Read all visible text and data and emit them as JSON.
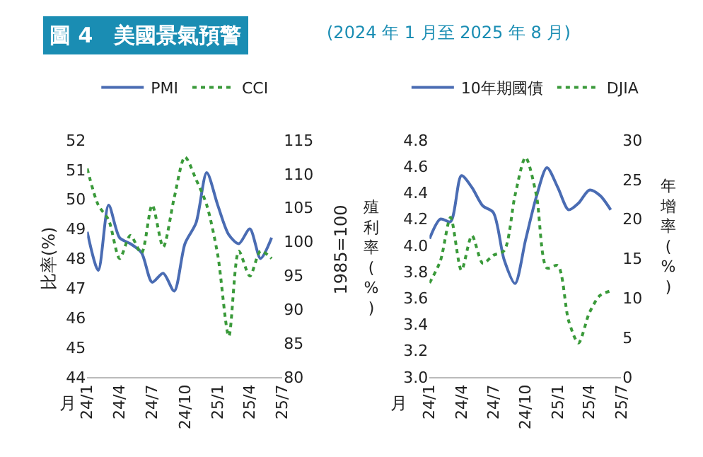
{
  "chart_data": [
    {
      "type": "line",
      "title": "圖 4　美國景氣預警",
      "xlabel": "月",
      "ylabel": "比率(%)",
      "y2label": "1985=100",
      "x": [
        "2024-01",
        "2024-02",
        "2024-03",
        "2024-04",
        "2024-05",
        "2024-06",
        "2024-07",
        "2024-08",
        "2024-09",
        "2024-10",
        "2024-11",
        "2024-12",
        "2025-01",
        "2025-02",
        "2025-03",
        "2025-04",
        "2025-05",
        "2025-06"
      ],
      "series": [
        {
          "name": "PMI",
          "color": "#4a6cb3",
          "line_style": "solid",
          "values": [
            48.9,
            47.6,
            49.8,
            48.7,
            48.5,
            48.2,
            47.2,
            47.5,
            46.9,
            48.5,
            49.2,
            50.9,
            49.8,
            48.8,
            48.5,
            49.0,
            48.0,
            48.7
          ]
        },
        {
          "name": "CCI",
          "color": "#3a9a3a",
          "line_style": "dotted",
          "axis": "y2",
          "values": [
            110.8,
            105.4,
            103.2,
            97.5,
            100.9,
            98.3,
            105.4,
            99.2,
            106.5,
            112.5,
            109.2,
            105.4,
            98.0,
            86.0,
            98.6,
            94.9,
            98.6,
            97.5
          ]
        }
      ],
      "xlim": [
        "2024-01",
        "2025-07"
      ],
      "xticks": [
        {
          "value": "2024-01",
          "label": "24/1"
        },
        {
          "value": "2024-04",
          "label": "24/4"
        },
        {
          "value": "2024-07",
          "label": "24/7"
        },
        {
          "value": "2024-10",
          "label": "24/10"
        },
        {
          "value": "2025-01",
          "label": "25/1"
        },
        {
          "value": "2025-04",
          "label": "25/4"
        },
        {
          "value": "2025-07",
          "label": "25/7"
        }
      ],
      "ylim": [
        44,
        52
      ],
      "yticks": [
        44,
        45,
        46,
        47,
        48,
        49,
        50,
        51,
        52
      ],
      "y2lim": [
        80,
        115
      ],
      "y2ticks": [
        80,
        85,
        90,
        95,
        100,
        105,
        110,
        115
      ],
      "legend": "top"
    },
    {
      "type": "line",
      "subtitle": "(2024 年 1 月至 2025 年 8 月)",
      "xlabel": "月",
      "ylabel": "殖利率(%)",
      "y2label": "年增率(%)",
      "x": [
        "2024-01",
        "2024-02",
        "2024-03",
        "2024-04",
        "2024-05",
        "2024-06",
        "2024-07",
        "2024-08",
        "2024-09",
        "2024-10",
        "2024-11",
        "2024-12",
        "2025-01",
        "2025-02",
        "2025-03",
        "2025-04",
        "2025-05",
        "2025-06"
      ],
      "series": [
        {
          "name": "10年期國債",
          "color": "#4a6cb3",
          "line_style": "solid",
          "values": [
            4.05,
            4.2,
            4.18,
            4.53,
            4.44,
            4.3,
            4.25,
            3.89,
            3.71,
            4.04,
            4.37,
            4.59,
            4.44,
            4.27,
            4.32,
            4.42,
            4.38,
            4.27
          ]
        },
        {
          "name": "DJIA",
          "color": "#3a9a3a",
          "line_style": "dotted",
          "axis": "y2",
          "values": [
            11.9,
            14.7,
            20.2,
            13.5,
            17.9,
            14.4,
            15.4,
            16.0,
            23.0,
            27.8,
            23.0,
            13.8,
            14.1,
            7.1,
            4.3,
            8.1,
            10.3,
            10.9
          ]
        }
      ],
      "xlim": [
        "2024-01",
        "2025-07"
      ],
      "xticks": [
        {
          "value": "2024-01",
          "label": "24/1"
        },
        {
          "value": "2024-04",
          "label": "24/4"
        },
        {
          "value": "2024-07",
          "label": "24/7"
        },
        {
          "value": "2024-10",
          "label": "24/10"
        },
        {
          "value": "2025-01",
          "label": "25/1"
        },
        {
          "value": "2025-04",
          "label": "25/4"
        },
        {
          "value": "2025-07",
          "label": "25/7"
        }
      ],
      "ylim": [
        3.0,
        4.8
      ],
      "yticks": [
        {
          "value": 3,
          "label": "3.0"
        },
        3.2,
        3.4,
        3.6,
        3.8,
        {
          "value": 4,
          "label": "4.0"
        },
        4.2,
        4.4,
        4.6,
        4.8
      ],
      "y2lim": [
        0,
        30
      ],
      "y2ticks": [
        0,
        5,
        10,
        15,
        20,
        25,
        30
      ],
      "legend": "top"
    }
  ]
}
